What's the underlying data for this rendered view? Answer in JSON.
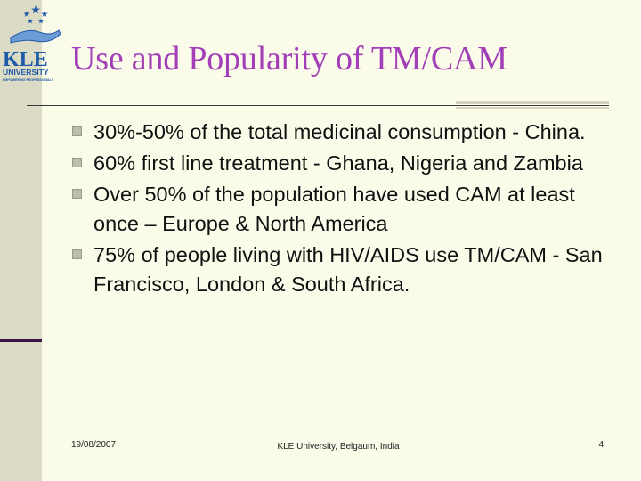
{
  "logo": {
    "text_big": "KLE",
    "text_mid": "UNIVERSITY",
    "tagline": "EMPOWERING PROFESSIONALS",
    "accent": "#1f5aa8"
  },
  "slide": {
    "title": "Use and Popularity of TM/CAM",
    "title_color": "#a23fb8",
    "bullets": [
      "30%-50% of the total medicinal consumption - China.",
      "60% first line treatment - Ghana, Nigeria and Zambia",
      "Over 50% of the population have used  CAM at least once – Europe & North America",
      "75% of people living with HIV/AIDS use TM/CAM - San Francisco, London & South Africa."
    ]
  },
  "footer": {
    "date": "19/08/2007",
    "center": "KLE University, Belgaum, India",
    "page": "4"
  }
}
